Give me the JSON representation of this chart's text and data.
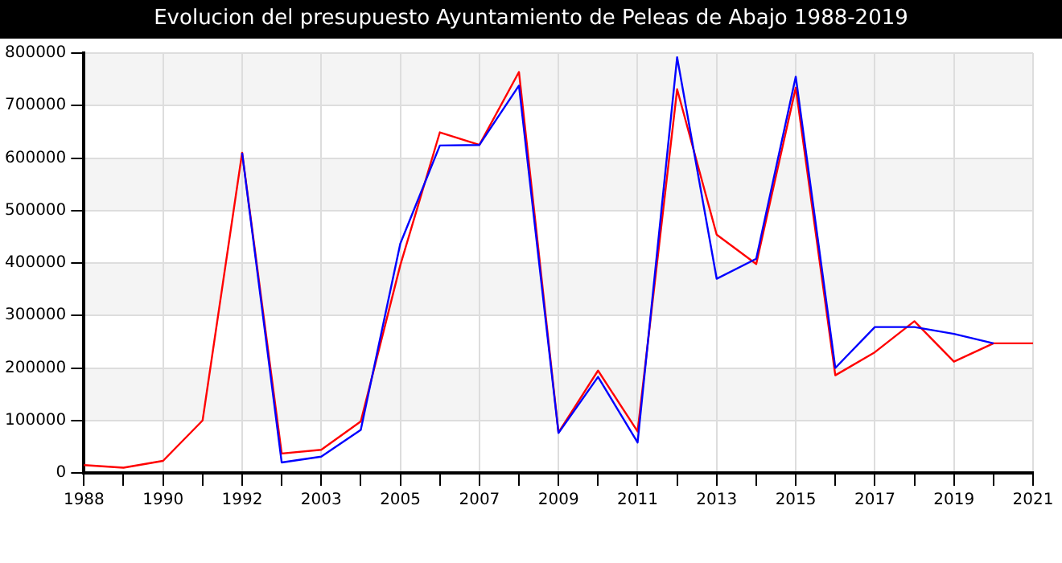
{
  "chart_data": {
    "type": "line",
    "title": "Evolucion del presupuesto Ayuntamiento de Peleas de Abajo 1988-2019",
    "categories": [
      "1988",
      null,
      "1990",
      null,
      "1992",
      null,
      "2003",
      null,
      "2005",
      null,
      "2007",
      null,
      "2009",
      null,
      "2011",
      null,
      "2013",
      null,
      "2015",
      null,
      "2017",
      null,
      "2019",
      null,
      "2021"
    ],
    "series": [
      {
        "color": "#0000ff",
        "values": [
          null,
          null,
          null,
          null,
          610000,
          20000,
          31000,
          82000,
          437000,
          624000,
          625000,
          738000,
          76000,
          183000,
          58000,
          792000,
          370000,
          408000,
          755000,
          200000,
          278000,
          278000,
          265000,
          247000,
          null
        ]
      },
      {
        "color": "#ff0000",
        "values": [
          15000,
          10000,
          23000,
          100000,
          610000,
          37000,
          44000,
          98000,
          396000,
          649000,
          625000,
          764000,
          77000,
          195000,
          79000,
          731000,
          454000,
          398000,
          734000,
          186000,
          230000,
          289000,
          212000,
          247000,
          247000
        ]
      }
    ],
    "ylim": [
      0,
      800000
    ],
    "yticks": [
      0,
      100000,
      200000,
      300000,
      400000,
      500000,
      600000,
      700000,
      800000
    ],
    "grid": true,
    "legend": false,
    "marker": "none",
    "line_style": "solid"
  }
}
